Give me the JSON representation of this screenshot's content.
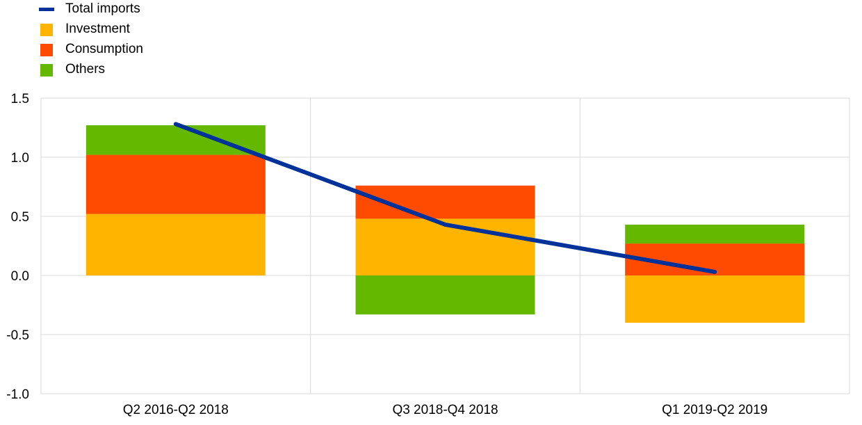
{
  "chart_data": {
    "type": "bar",
    "title": "",
    "xlabel": "",
    "ylabel": "",
    "stacked": true,
    "categories": [
      "Q2 2016-Q2 2018",
      "Q3 2018-Q4 2018",
      "Q1 2019-Q2 2019"
    ],
    "ylim": [
      -1.0,
      1.5
    ],
    "yticks": [
      -1.0,
      -0.5,
      0.0,
      0.5,
      1.0,
      1.5
    ],
    "ytick_labels": [
      "-1.0",
      "-0.5",
      "0.0",
      "0.5",
      "1.0",
      "1.5"
    ],
    "grid": true,
    "legend_position": "top-left",
    "series": [
      {
        "name": "Investment",
        "kind": "bar",
        "color": "#FFB400",
        "values": [
          0.52,
          0.48,
          -0.4
        ]
      },
      {
        "name": "Consumption",
        "kind": "bar",
        "color": "#FF4B00",
        "values": [
          0.5,
          0.28,
          0.27
        ]
      },
      {
        "name": "Others",
        "kind": "bar",
        "color": "#65B800",
        "values": [
          0.25,
          -0.33,
          0.16
        ]
      },
      {
        "name": "Total imports",
        "kind": "line",
        "color": "#003299",
        "values": [
          1.28,
          0.43,
          0.03
        ]
      }
    ],
    "legend_order": [
      "Total imports",
      "Investment",
      "Consumption",
      "Others"
    ]
  }
}
